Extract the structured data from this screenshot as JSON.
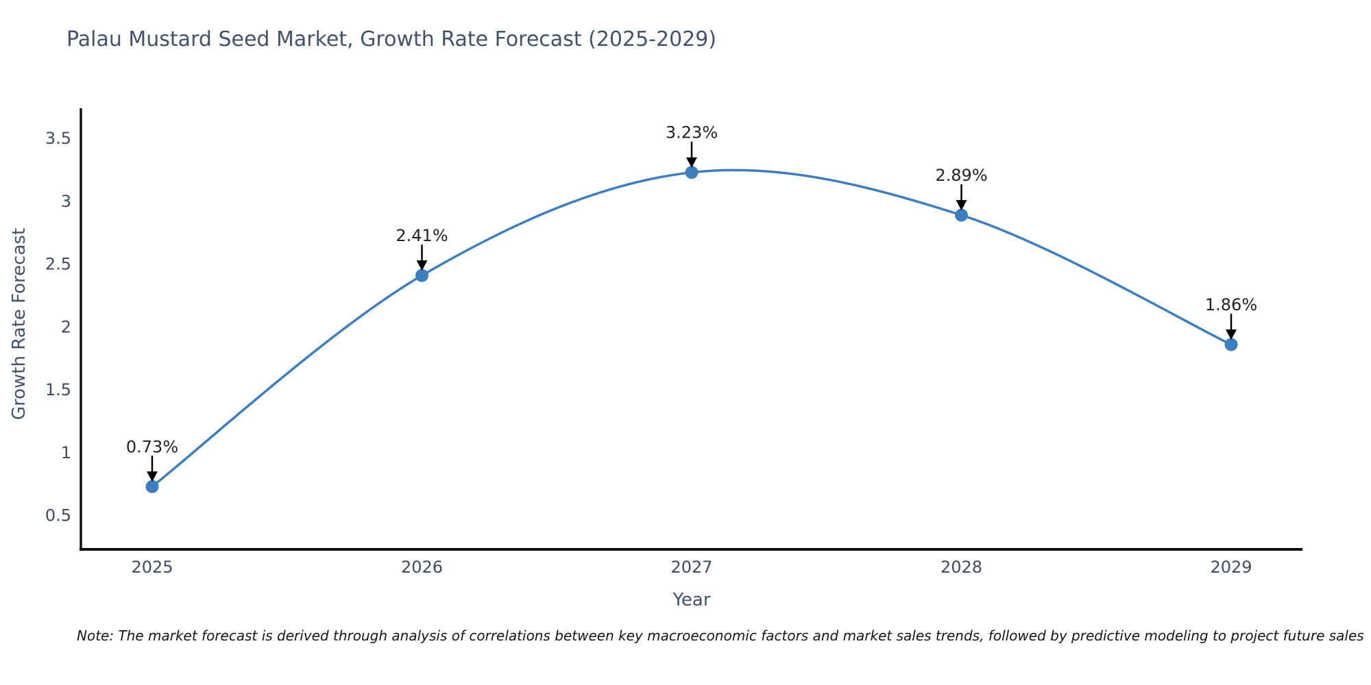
{
  "note": "Note: The market forecast is derived through analysis of correlations between key macroeconomic factors and market sales trends, followed by predictive modeling to project future sales",
  "chart_data": {
    "type": "line",
    "title": "Palau Mustard Seed Market, Growth Rate Forecast (2025-2029)",
    "xlabel": "Year",
    "ylabel": "Growth Rate Forecast",
    "categories": [
      "2025",
      "2026",
      "2027",
      "2028",
      "2029"
    ],
    "series": [
      {
        "name": "Growth Rate Forecast",
        "values": [
          0.73,
          2.41,
          3.23,
          2.89,
          1.86
        ]
      }
    ],
    "point_labels": [
      "0.73%",
      "2.41%",
      "3.23%",
      "2.89%",
      "1.86%"
    ],
    "yticks": [
      0.5,
      1,
      1.5,
      2,
      2.5,
      3,
      3.5
    ],
    "ylim": [
      0.23,
      3.73
    ],
    "line_shape": "spline",
    "grid": false,
    "legend": false,
    "line_color": "#3e7ebe",
    "marker_color": "#3e7ebe",
    "axis_color": "#111111",
    "tick_text_color": "#3f4b60",
    "title_text_color": "#42526e",
    "annotation_text_color": "#222222",
    "annotation_arrow_color": "#000000"
  }
}
